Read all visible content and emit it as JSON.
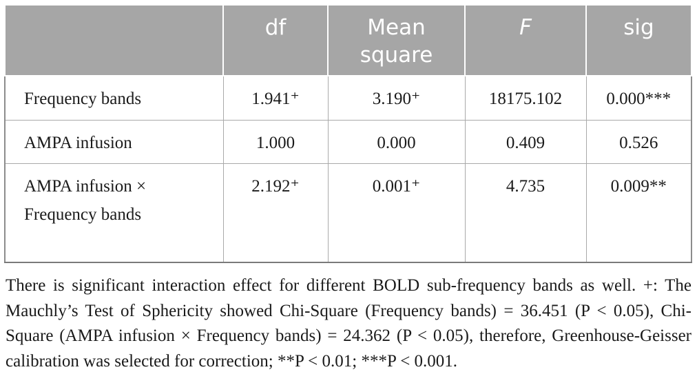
{
  "table": {
    "headers": [
      "",
      "df",
      "Mean square",
      "F",
      "sig"
    ],
    "rows": [
      {
        "label": "Frequency bands",
        "df": "1.941⁺",
        "mean_square": "3.190⁺",
        "f": "18175.102",
        "sig": "0.000***"
      },
      {
        "label": "AMPA infusion",
        "df": "1.000",
        "mean_square": "0.000",
        "f": "0.409",
        "sig": "0.526"
      },
      {
        "label": "AMPA infusion × Frequency bands",
        "df": "2.192⁺",
        "mean_square": "0.001⁺",
        "f": "4.735",
        "sig": "0.009**"
      }
    ]
  },
  "footnote": "There is significant interaction effect for different BOLD sub-frequency bands as well. +: The Mauchly’s Test of Sphericity showed Chi-Square (Frequency bands) = 36.451 (P < 0.05), Chi-Square (AMPA infusion × Frequency bands) = 24.362 (P < 0.05), therefore, Greenhouse-Geisser calibration was selected for correction; **P < 0.01; ***P < 0.001."
}
